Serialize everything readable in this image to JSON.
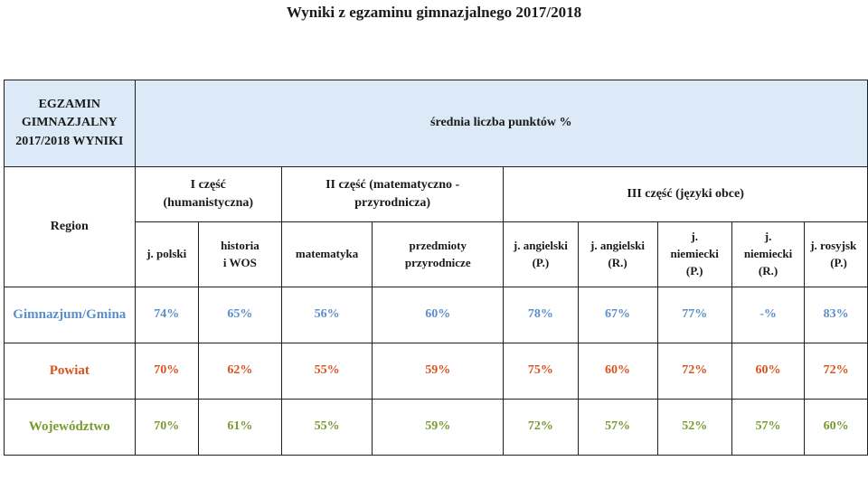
{
  "title": "Wyniki z egzaminu gimnazjalnego 2017/2018",
  "header": {
    "corner_line1": "EGZAMIN",
    "corner_line2": "GIMNAZJALNY",
    "corner_line3": "2017/2018 WYNIKI",
    "avg_points": "średnia liczba punktów %",
    "region": "Region",
    "part1_line1": "I część",
    "part1_line2": "(humanistyczna)",
    "part2_line1": "II część (matematyczno -",
    "part2_line2": "przyrodnicza)",
    "part3": "III część (języki obce)"
  },
  "subjects": {
    "polski": "j. polski",
    "historia_line1": "historia",
    "historia_line2": "i WOS",
    "matematyka": "matematyka",
    "przyrodnicze_line1": "przedmioty",
    "przyrodnicze_line2": "przyrodnicze",
    "ang_p_line1": "j. angielski",
    "ang_p_line2": "(P.)",
    "ang_r_line1": "j. angielski",
    "ang_r_line2": "(R.)",
    "niem_p_line1": "j.",
    "niem_p_line2": "niemiecki",
    "niem_p_line3": "(P.)",
    "niem_r_line1": "j.",
    "niem_r_line2": "niemiecki",
    "niem_r_line3": "(R.)",
    "ros_p_line1": "j. rosyjsk",
    "ros_p_line2": "(P.)"
  },
  "rows": {
    "gmina": {
      "label": "Gimnazjum/Gmina",
      "color": "#5b8fc9",
      "values": [
        "74%",
        "65%",
        "56%",
        "60%",
        "78%",
        "67%",
        "77%",
        "-%",
        "83%"
      ]
    },
    "powiat": {
      "label": "Powiat",
      "color": "#d9531e",
      "values": [
        "70%",
        "62%",
        "55%",
        "59%",
        "75%",
        "60%",
        "72%",
        "60%",
        "72%"
      ]
    },
    "wojewodztwo": {
      "label": "Województwo",
      "color": "#7a9a2e",
      "values": [
        "70%",
        "61%",
        "55%",
        "59%",
        "72%",
        "57%",
        "52%",
        "57%",
        "60%"
      ]
    }
  },
  "colors": {
    "header_background": "#dce9f6",
    "border": "#1f1f1f"
  }
}
